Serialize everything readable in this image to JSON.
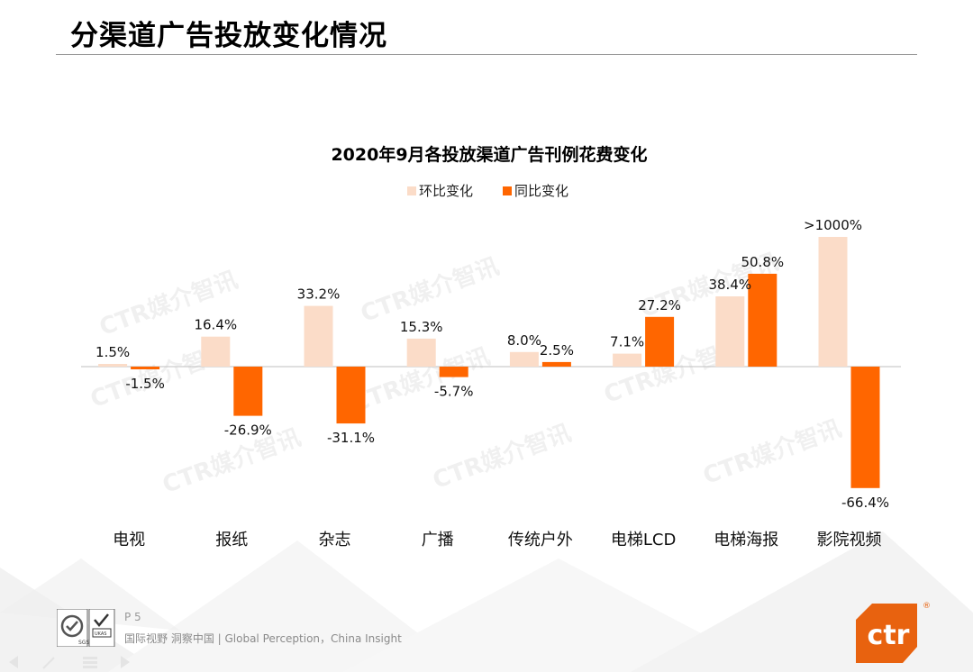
{
  "page": {
    "title": "分渠道广告投放变化情况",
    "page_number": "P 5",
    "tagline": "国际视野  洞察中国 |  Global Perception，China Insight",
    "watermark": "CTR媒介智讯",
    "brand": "ctr"
  },
  "colors": {
    "mom": "#FBDCC8",
    "yoy": "#FF6600",
    "axis": "#BFBFBF",
    "brand": "#E8620F"
  },
  "chart_data": {
    "type": "bar",
    "title": "2020年9月各投放渠道广告刊例花费变化",
    "categories": [
      "电视",
      "报纸",
      "杂志",
      "广播",
      "传统户外",
      "电梯LCD",
      "电梯海报",
      "影院视频"
    ],
    "series": [
      {
        "name": "环比变化",
        "values": [
          1.5,
          16.4,
          33.2,
          15.3,
          8.0,
          7.1,
          38.4,
          1000
        ],
        "labels": [
          "1.5%",
          "16.4%",
          "33.2%",
          "15.3%",
          "8.0%",
          "7.1%",
          "38.4%",
          ">1000%"
        ]
      },
      {
        "name": "同比变化",
        "values": [
          -1.5,
          -26.9,
          -31.1,
          -5.7,
          2.5,
          27.2,
          50.8,
          -66.4
        ],
        "labels": [
          "-1.5%",
          "-26.9%",
          "-31.1%",
          "-5.7%",
          "2.5%",
          "27.2%",
          "50.8%",
          "-66.4%"
        ]
      }
    ],
    "xlabel": "",
    "ylabel": "",
    "axis_visible": false,
    "legend_position": "top-center",
    "note": "影院视频环比 >1000% bar is truncated (broken scale)"
  }
}
